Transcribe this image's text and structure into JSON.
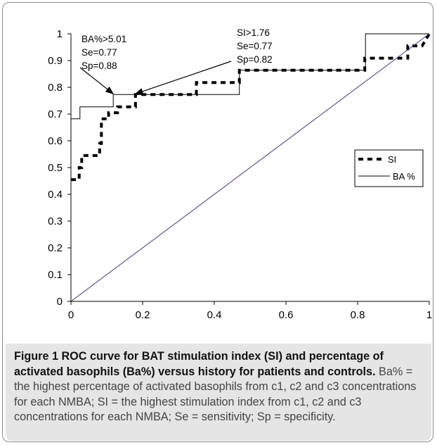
{
  "chart_data": {
    "type": "line",
    "title": "",
    "xlabel": "",
    "ylabel": "",
    "xlim": [
      0,
      1
    ],
    "ylim": [
      0,
      1
    ],
    "x_ticks": [
      "0",
      "0.2",
      "0.4",
      "0.6",
      "0.8",
      "1"
    ],
    "y_ticks": [
      "0",
      "0.1",
      "0.2",
      "0.3",
      "0.4",
      "0.5",
      "0.6",
      "0.7",
      "0.8",
      "0.9",
      "1"
    ],
    "grid": false,
    "legend_position": "right-middle",
    "series": [
      {
        "name": "SI",
        "style": "dashed",
        "color": "#000000",
        "points": [
          [
            0,
            0.455
          ],
          [
            0.023,
            0.455
          ],
          [
            0.023,
            0.5
          ],
          [
            0.03,
            0.5
          ],
          [
            0.03,
            0.545
          ],
          [
            0.08,
            0.545
          ],
          [
            0.08,
            0.59
          ],
          [
            0.085,
            0.59
          ],
          [
            0.085,
            0.682
          ],
          [
            0.105,
            0.682
          ],
          [
            0.105,
            0.705
          ],
          [
            0.13,
            0.705
          ],
          [
            0.13,
            0.727
          ],
          [
            0.18,
            0.727
          ],
          [
            0.18,
            0.773
          ],
          [
            0.35,
            0.773
          ],
          [
            0.35,
            0.818
          ],
          [
            0.47,
            0.818
          ],
          [
            0.47,
            0.864
          ],
          [
            0.82,
            0.864
          ],
          [
            0.82,
            0.909
          ],
          [
            0.94,
            0.909
          ],
          [
            0.94,
            0.955
          ],
          [
            0.98,
            0.955
          ],
          [
            1.0,
            1.0
          ]
        ]
      },
      {
        "name": "BA %",
        "style": "solid",
        "color": "#000000",
        "points": [
          [
            0,
            0.682
          ],
          [
            0.025,
            0.682
          ],
          [
            0.025,
            0.727
          ],
          [
            0.118,
            0.727
          ],
          [
            0.118,
            0.773
          ],
          [
            0.47,
            0.773
          ],
          [
            0.47,
            0.864
          ],
          [
            0.822,
            0.864
          ],
          [
            0.822,
            1.0
          ],
          [
            1.0,
            1.0
          ]
        ]
      },
      {
        "name": "",
        "style": "solid",
        "color": "#3a3a8c",
        "points": [
          [
            0,
            0
          ],
          [
            1,
            1
          ]
        ]
      }
    ],
    "annotations": [
      {
        "lines": [
          "BA%>5.01",
          "Se=0.77",
          "Sp=0.88"
        ],
        "target": [
          0.118,
          0.773
        ]
      },
      {
        "lines": [
          "SI>1.76",
          "Se=0.77",
          "Sp=0.82"
        ],
        "target": [
          0.18,
          0.773
        ]
      }
    ]
  },
  "caption": {
    "label": "Figure 1",
    "title": "ROC curve for BAT stimulation index (SI) and percentage of activated basophils (Ba%) versus history for patients and controls.",
    "body": "Ba% = the highest percentage of activated basophils from c1, c2 and c3 concentrations for each NMBA; SI = the highest stimulation index from c1, c2 and c3 concentrations for each NMBA; Se = sensitivity; Sp = specificity."
  }
}
